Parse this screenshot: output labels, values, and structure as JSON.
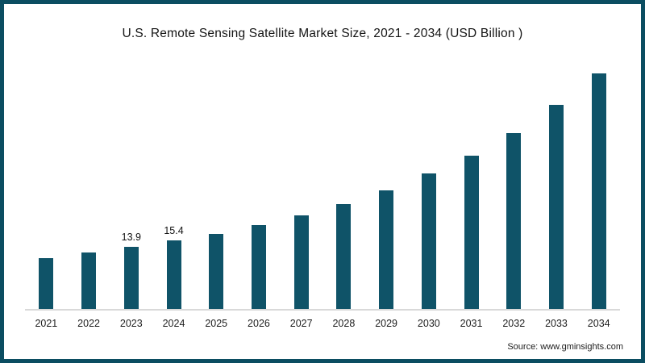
{
  "title": "U.S. Remote Sensing Satellite Market Size, 2021 - 2034 (USD Billion )",
  "source": "Source: www.gminsights.com",
  "colors": {
    "frame_border": "#0b4d61",
    "bar": "#0f5368",
    "baseline": "#d9d9d9"
  },
  "chart_data": {
    "type": "bar",
    "title": "U.S. Remote Sensing Satellite Market Size, 2021 - 2034 (USD Billion )",
    "categories": [
      "2021",
      "2022",
      "2023",
      "2024",
      "2025",
      "2026",
      "2027",
      "2028",
      "2029",
      "2030",
      "2031",
      "2032",
      "2033",
      "2034"
    ],
    "values": [
      11.4,
      12.6,
      13.9,
      15.4,
      16.9,
      18.8,
      21.1,
      23.5,
      26.6,
      30.4,
      34.5,
      39.6,
      45.9,
      53.0
    ],
    "data_labels": [
      "",
      "",
      "13.9",
      "15.4",
      "",
      "",
      "",
      "",
      "",
      "",
      "",
      "",
      "",
      ""
    ],
    "xlabel": "",
    "ylabel": "",
    "ylim": [
      0,
      58
    ],
    "grid": false,
    "legend": false,
    "bar_color": "#0f5368"
  }
}
